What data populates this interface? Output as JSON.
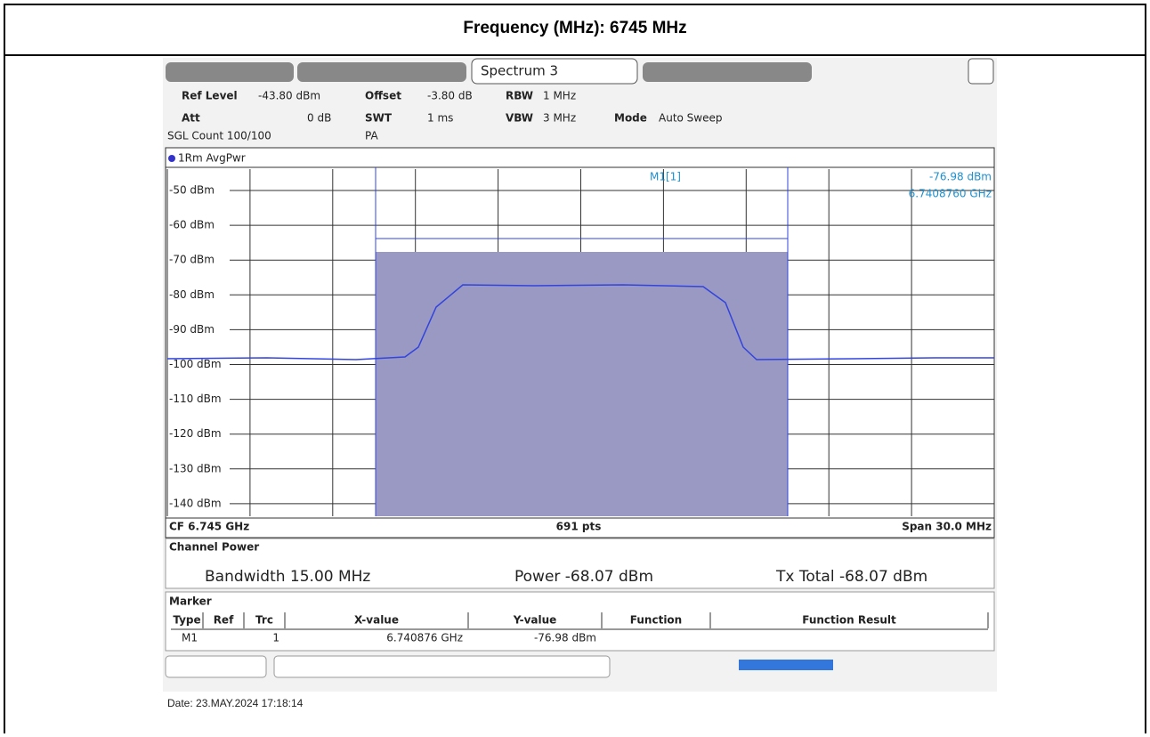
{
  "header": {
    "title": "Frequency (MHz): 6745 MHz"
  },
  "analyzer": {
    "active_tab": "Spectrum 3",
    "settings": [
      {
        "label": "Ref Level",
        "value": "-43.80 dBm"
      },
      {
        "label": "Offset",
        "value": "-3.80 dB"
      },
      {
        "label": "RBW",
        "value": "1 MHz"
      },
      {
        "label": "Att",
        "value": "0 dB"
      },
      {
        "label": "SWT",
        "value": "1 ms"
      },
      {
        "label": "VBW",
        "value": "3 MHz"
      },
      {
        "label": "Mode",
        "value": "Auto Sweep"
      }
    ],
    "sgl_count": "SGL Count 100/100",
    "pa": "PA",
    "trace_label": "1Rm AvgPwr",
    "marker_readout": {
      "name": "M1[1]",
      "level": "-76.98 dBm",
      "freq": "6.7408760 GHz"
    },
    "y_labels": [
      "-50 dBm",
      "-60 dBm",
      "-70 dBm",
      "-80 dBm",
      "-90 dBm",
      "-100 dBm",
      "-110 dBm",
      "-120 dBm",
      "-130 dBm",
      "-140 dBm"
    ],
    "footer": {
      "cf": "CF 6.745 GHz",
      "points": "691 pts",
      "span": "Span 30.0 MHz"
    },
    "channel_power": {
      "title": "Channel Power",
      "bandwidth": "Bandwidth 15.00 MHz",
      "power": "Power -68.07 dBm",
      "tx_total": "Tx Total -68.07 dBm"
    },
    "marker_table": {
      "title": "Marker",
      "headers": [
        "Type",
        "Ref",
        "Trc",
        "X-value",
        "Y-value",
        "Function",
        "Function Result"
      ],
      "rows": [
        [
          "M1",
          "",
          "1",
          "6.740876 GHz",
          "-76.98 dBm",
          "",
          ""
        ]
      ]
    }
  },
  "date": "Date: 23.MAY.2024  17:18:14"
}
